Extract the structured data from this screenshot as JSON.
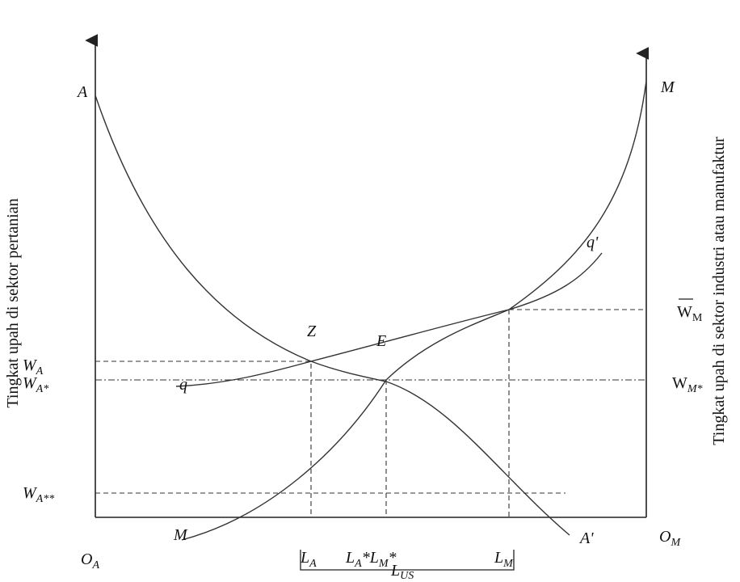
{
  "y_left_label": "Tingkat upah di sektor pertanian",
  "y_right_label": "Tingkat upah di sektor industri atau manufaktur",
  "curves": {
    "a_start": "A",
    "a_end": "A'",
    "m_start": "M",
    "m_end": "M",
    "q_start": "q",
    "q_end": "q'"
  },
  "points": {
    "z": "Z",
    "e": "E"
  },
  "wages": {
    "wa": {
      "main": "W",
      "sub": "A"
    },
    "wa_star": {
      "main": "W",
      "sub": "A*"
    },
    "wa_2star": {
      "main": "W",
      "sub": "A**"
    },
    "wm_bar": {
      "main": "W",
      "sub": "M"
    },
    "wm_star": {
      "main": "W",
      "sub": "M*"
    }
  },
  "origins": {
    "oa": {
      "main": "O",
      "sub": "A"
    },
    "om": {
      "main": "O",
      "sub": "M"
    }
  },
  "labor": {
    "la": {
      "main": "L",
      "sub": "A"
    },
    "lstar": {
      "a": "L",
      "a_sub": "A",
      "a_sup": "*",
      "m": "L",
      "m_sub": "M",
      "m_sup": "*"
    },
    "lm": {
      "main": "L",
      "sub": "M"
    },
    "lus": {
      "main": "L",
      "sub": "US"
    }
  }
}
